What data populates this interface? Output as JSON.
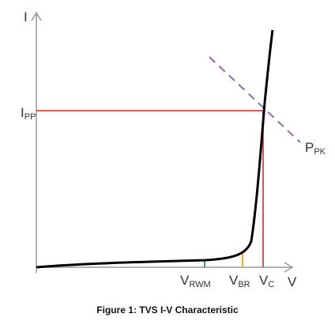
{
  "axis_labels": {
    "y": "I",
    "x": "V"
  },
  "labels": [
    {
      "main": "I",
      "sub": "PP"
    },
    {
      "main": "P",
      "sub": "PK"
    },
    {
      "main": "V",
      "sub": "RWM"
    },
    {
      "main": "V",
      "sub": "BR"
    },
    {
      "main": "V",
      "sub": "C"
    }
  ],
  "caption": "Figure 1: TVS I-V Characteristic"
}
